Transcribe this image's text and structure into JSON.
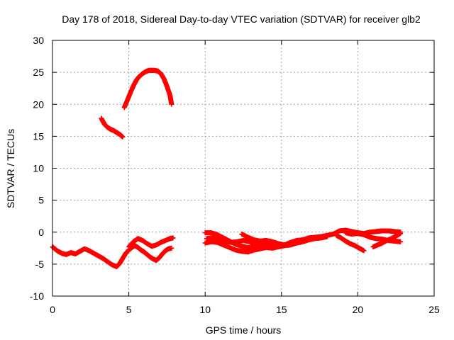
{
  "chart_data": {
    "type": "scatter",
    "title": "Day 178 of 2018, Sidereal Day-to-day VTEC variation (SDTVAR) for receiver glb2",
    "xlabel": "GPS time / hours",
    "ylabel": "SDTVAR / TECUs",
    "xlim": [
      0,
      25
    ],
    "ylim": [
      -10,
      30
    ],
    "xticks": [
      0,
      5,
      10,
      15,
      20,
      25
    ],
    "xtick_labels": [
      "0",
      "5",
      "10",
      "15",
      "20",
      "25"
    ],
    "yticks": [
      -10,
      -5,
      0,
      5,
      10,
      15,
      20,
      25,
      30
    ],
    "ytick_labels": [
      "-10",
      "-5",
      "0",
      "5",
      "10",
      "15",
      "20",
      "25",
      "30"
    ],
    "grid": true,
    "marker": "+",
    "color": "#ff0000",
    "series": [
      {
        "name": "track-early-low",
        "points": [
          [
            0.0,
            -2.3
          ],
          [
            0.3,
            -2.9
          ],
          [
            0.6,
            -3.3
          ],
          [
            0.9,
            -3.5
          ],
          [
            1.2,
            -3.2
          ],
          [
            1.5,
            -3.4
          ],
          [
            1.8,
            -3.0
          ],
          [
            2.1,
            -2.6
          ],
          [
            2.4,
            -2.9
          ],
          [
            2.7,
            -3.3
          ],
          [
            3.0,
            -3.7
          ],
          [
            3.3,
            -4.1
          ],
          [
            3.6,
            -4.6
          ],
          [
            3.9,
            -5.1
          ],
          [
            4.2,
            -5.4
          ],
          [
            4.4,
            -4.9
          ],
          [
            4.6,
            -4.1
          ],
          [
            4.8,
            -3.3
          ],
          [
            5.0,
            -2.8
          ],
          [
            5.2,
            -2.4
          ],
          [
            5.4,
            -2.1
          ],
          [
            5.6,
            -2.4
          ],
          [
            5.8,
            -2.8
          ],
          [
            6.0,
            -3.1
          ],
          [
            6.2,
            -3.5
          ],
          [
            6.4,
            -3.9
          ],
          [
            6.6,
            -4.2
          ],
          [
            6.8,
            -4.4
          ],
          [
            7.0,
            -4.0
          ],
          [
            7.2,
            -3.4
          ],
          [
            7.4,
            -2.9
          ],
          [
            7.6,
            -2.6
          ],
          [
            7.8,
            -2.5
          ]
        ]
      },
      {
        "name": "track-early-upper",
        "points": [
          [
            5.0,
            -2.3
          ],
          [
            5.3,
            -1.5
          ],
          [
            5.6,
            -1.0
          ],
          [
            5.9,
            -1.3
          ],
          [
            6.2,
            -1.8
          ],
          [
            6.5,
            -2.2
          ],
          [
            6.8,
            -2.0
          ],
          [
            7.1,
            -1.6
          ],
          [
            7.4,
            -1.3
          ],
          [
            7.7,
            -1.0
          ],
          [
            7.9,
            -0.9
          ]
        ]
      },
      {
        "name": "track-mid-lower",
        "points": [
          [
            3.2,
            17.8
          ],
          [
            3.4,
            16.9
          ],
          [
            3.6,
            16.4
          ],
          [
            3.8,
            16.1
          ],
          [
            4.0,
            15.9
          ],
          [
            4.2,
            15.6
          ],
          [
            4.4,
            15.3
          ],
          [
            4.6,
            14.9
          ]
        ]
      },
      {
        "name": "track-mid-upper",
        "points": [
          [
            4.7,
            19.5
          ],
          [
            4.9,
            20.6
          ],
          [
            5.1,
            21.8
          ],
          [
            5.3,
            22.9
          ],
          [
            5.5,
            23.8
          ],
          [
            5.7,
            24.4
          ],
          [
            5.9,
            24.8
          ],
          [
            6.1,
            25.1
          ],
          [
            6.3,
            25.3
          ],
          [
            6.5,
            25.3
          ],
          [
            6.7,
            25.3
          ],
          [
            6.9,
            25.2
          ],
          [
            7.1,
            24.8
          ],
          [
            7.3,
            24.0
          ],
          [
            7.5,
            22.8
          ],
          [
            7.7,
            21.4
          ],
          [
            7.8,
            20.0
          ]
        ]
      },
      {
        "name": "track-late-a",
        "points": [
          [
            10.0,
            -0.1
          ],
          [
            10.4,
            -0.1
          ],
          [
            10.8,
            -0.4
          ],
          [
            11.2,
            -0.9
          ],
          [
            11.6,
            -1.4
          ],
          [
            12.0,
            -1.9
          ],
          [
            12.4,
            -2.2
          ],
          [
            12.8,
            -2.4
          ],
          [
            13.2,
            -2.3
          ],
          [
            13.6,
            -2.0
          ],
          [
            14.0,
            -1.8
          ],
          [
            14.4,
            -1.9
          ],
          [
            14.8,
            -2.2
          ],
          [
            15.2,
            -2.0
          ],
          [
            15.6,
            -1.6
          ],
          [
            16.0,
            -1.3
          ],
          [
            16.4,
            -1.2
          ],
          [
            16.8,
            -0.9
          ],
          [
            17.2,
            -0.8
          ],
          [
            17.6,
            -0.7
          ],
          [
            18.0,
            -0.5
          ],
          [
            18.4,
            -0.3
          ],
          [
            18.8,
            0.2
          ],
          [
            19.2,
            0.3
          ],
          [
            19.6,
            0.1
          ],
          [
            20.0,
            -0.1
          ],
          [
            20.4,
            -0.2
          ],
          [
            20.8,
            0.0
          ],
          [
            21.2,
            0.1
          ],
          [
            21.6,
            0.2
          ],
          [
            22.0,
            0.2
          ],
          [
            22.4,
            0.1
          ],
          [
            22.8,
            0.0
          ]
        ]
      },
      {
        "name": "track-late-b",
        "points": [
          [
            10.0,
            -1.7
          ],
          [
            10.4,
            -1.5
          ],
          [
            10.8,
            -1.6
          ],
          [
            11.2,
            -2.0
          ],
          [
            11.6,
            -2.4
          ],
          [
            12.0,
            -2.8
          ],
          [
            12.4,
            -3.0
          ],
          [
            12.8,
            -3.1
          ],
          [
            13.2,
            -2.8
          ],
          [
            13.6,
            -2.6
          ],
          [
            14.0,
            -2.4
          ],
          [
            14.4,
            -2.5
          ],
          [
            14.8,
            -2.3
          ],
          [
            15.2,
            -2.1
          ],
          [
            15.6,
            -2.0
          ],
          [
            16.0,
            -1.7
          ],
          [
            16.4,
            -1.5
          ],
          [
            16.8,
            -1.2
          ],
          [
            17.2,
            -1.0
          ],
          [
            17.6,
            -0.9
          ],
          [
            18.0,
            -0.7
          ]
        ]
      },
      {
        "name": "track-late-c",
        "points": [
          [
            10.1,
            -1.0
          ],
          [
            10.5,
            -0.9
          ],
          [
            10.9,
            -1.1
          ],
          [
            11.3,
            -1.4
          ],
          [
            11.7,
            -1.6
          ],
          [
            12.1,
            -1.5
          ],
          [
            12.5,
            -1.3
          ],
          [
            12.9,
            -1.5
          ],
          [
            13.3,
            -1.8
          ],
          [
            13.7,
            -1.9
          ]
        ]
      },
      {
        "name": "track-late-d",
        "points": [
          [
            12.4,
            -0.3
          ],
          [
            12.8,
            -0.8
          ],
          [
            13.2,
            -1.2
          ],
          [
            13.6,
            -1.4
          ],
          [
            14.0,
            -1.3
          ],
          [
            14.4,
            -1.5
          ],
          [
            14.8,
            -1.8
          ],
          [
            15.2,
            -2.0
          ]
        ]
      },
      {
        "name": "track-late-e",
        "points": [
          [
            18.6,
            -0.5
          ],
          [
            18.9,
            -0.9
          ],
          [
            19.2,
            -1.4
          ],
          [
            19.5,
            -1.8
          ],
          [
            19.8,
            -2.1
          ],
          [
            20.1,
            -2.5
          ],
          [
            20.4,
            -2.9
          ]
        ]
      },
      {
        "name": "track-late-f",
        "points": [
          [
            19.2,
            -0.1
          ],
          [
            19.6,
            -0.3
          ],
          [
            20.0,
            -0.2
          ],
          [
            20.4,
            -0.4
          ],
          [
            20.8,
            -0.8
          ],
          [
            21.2,
            -1.0
          ],
          [
            21.6,
            -1.1
          ],
          [
            22.0,
            -1.3
          ],
          [
            22.4,
            -1.4
          ],
          [
            22.8,
            -1.5
          ]
        ]
      },
      {
        "name": "track-late-g",
        "points": [
          [
            21.0,
            -2.3
          ],
          [
            21.3,
            -2.0
          ],
          [
            21.6,
            -1.7
          ],
          [
            21.9,
            -1.3
          ],
          [
            22.2,
            -1.0
          ],
          [
            22.5,
            -0.6
          ],
          [
            22.8,
            -0.2
          ]
        ]
      }
    ]
  }
}
